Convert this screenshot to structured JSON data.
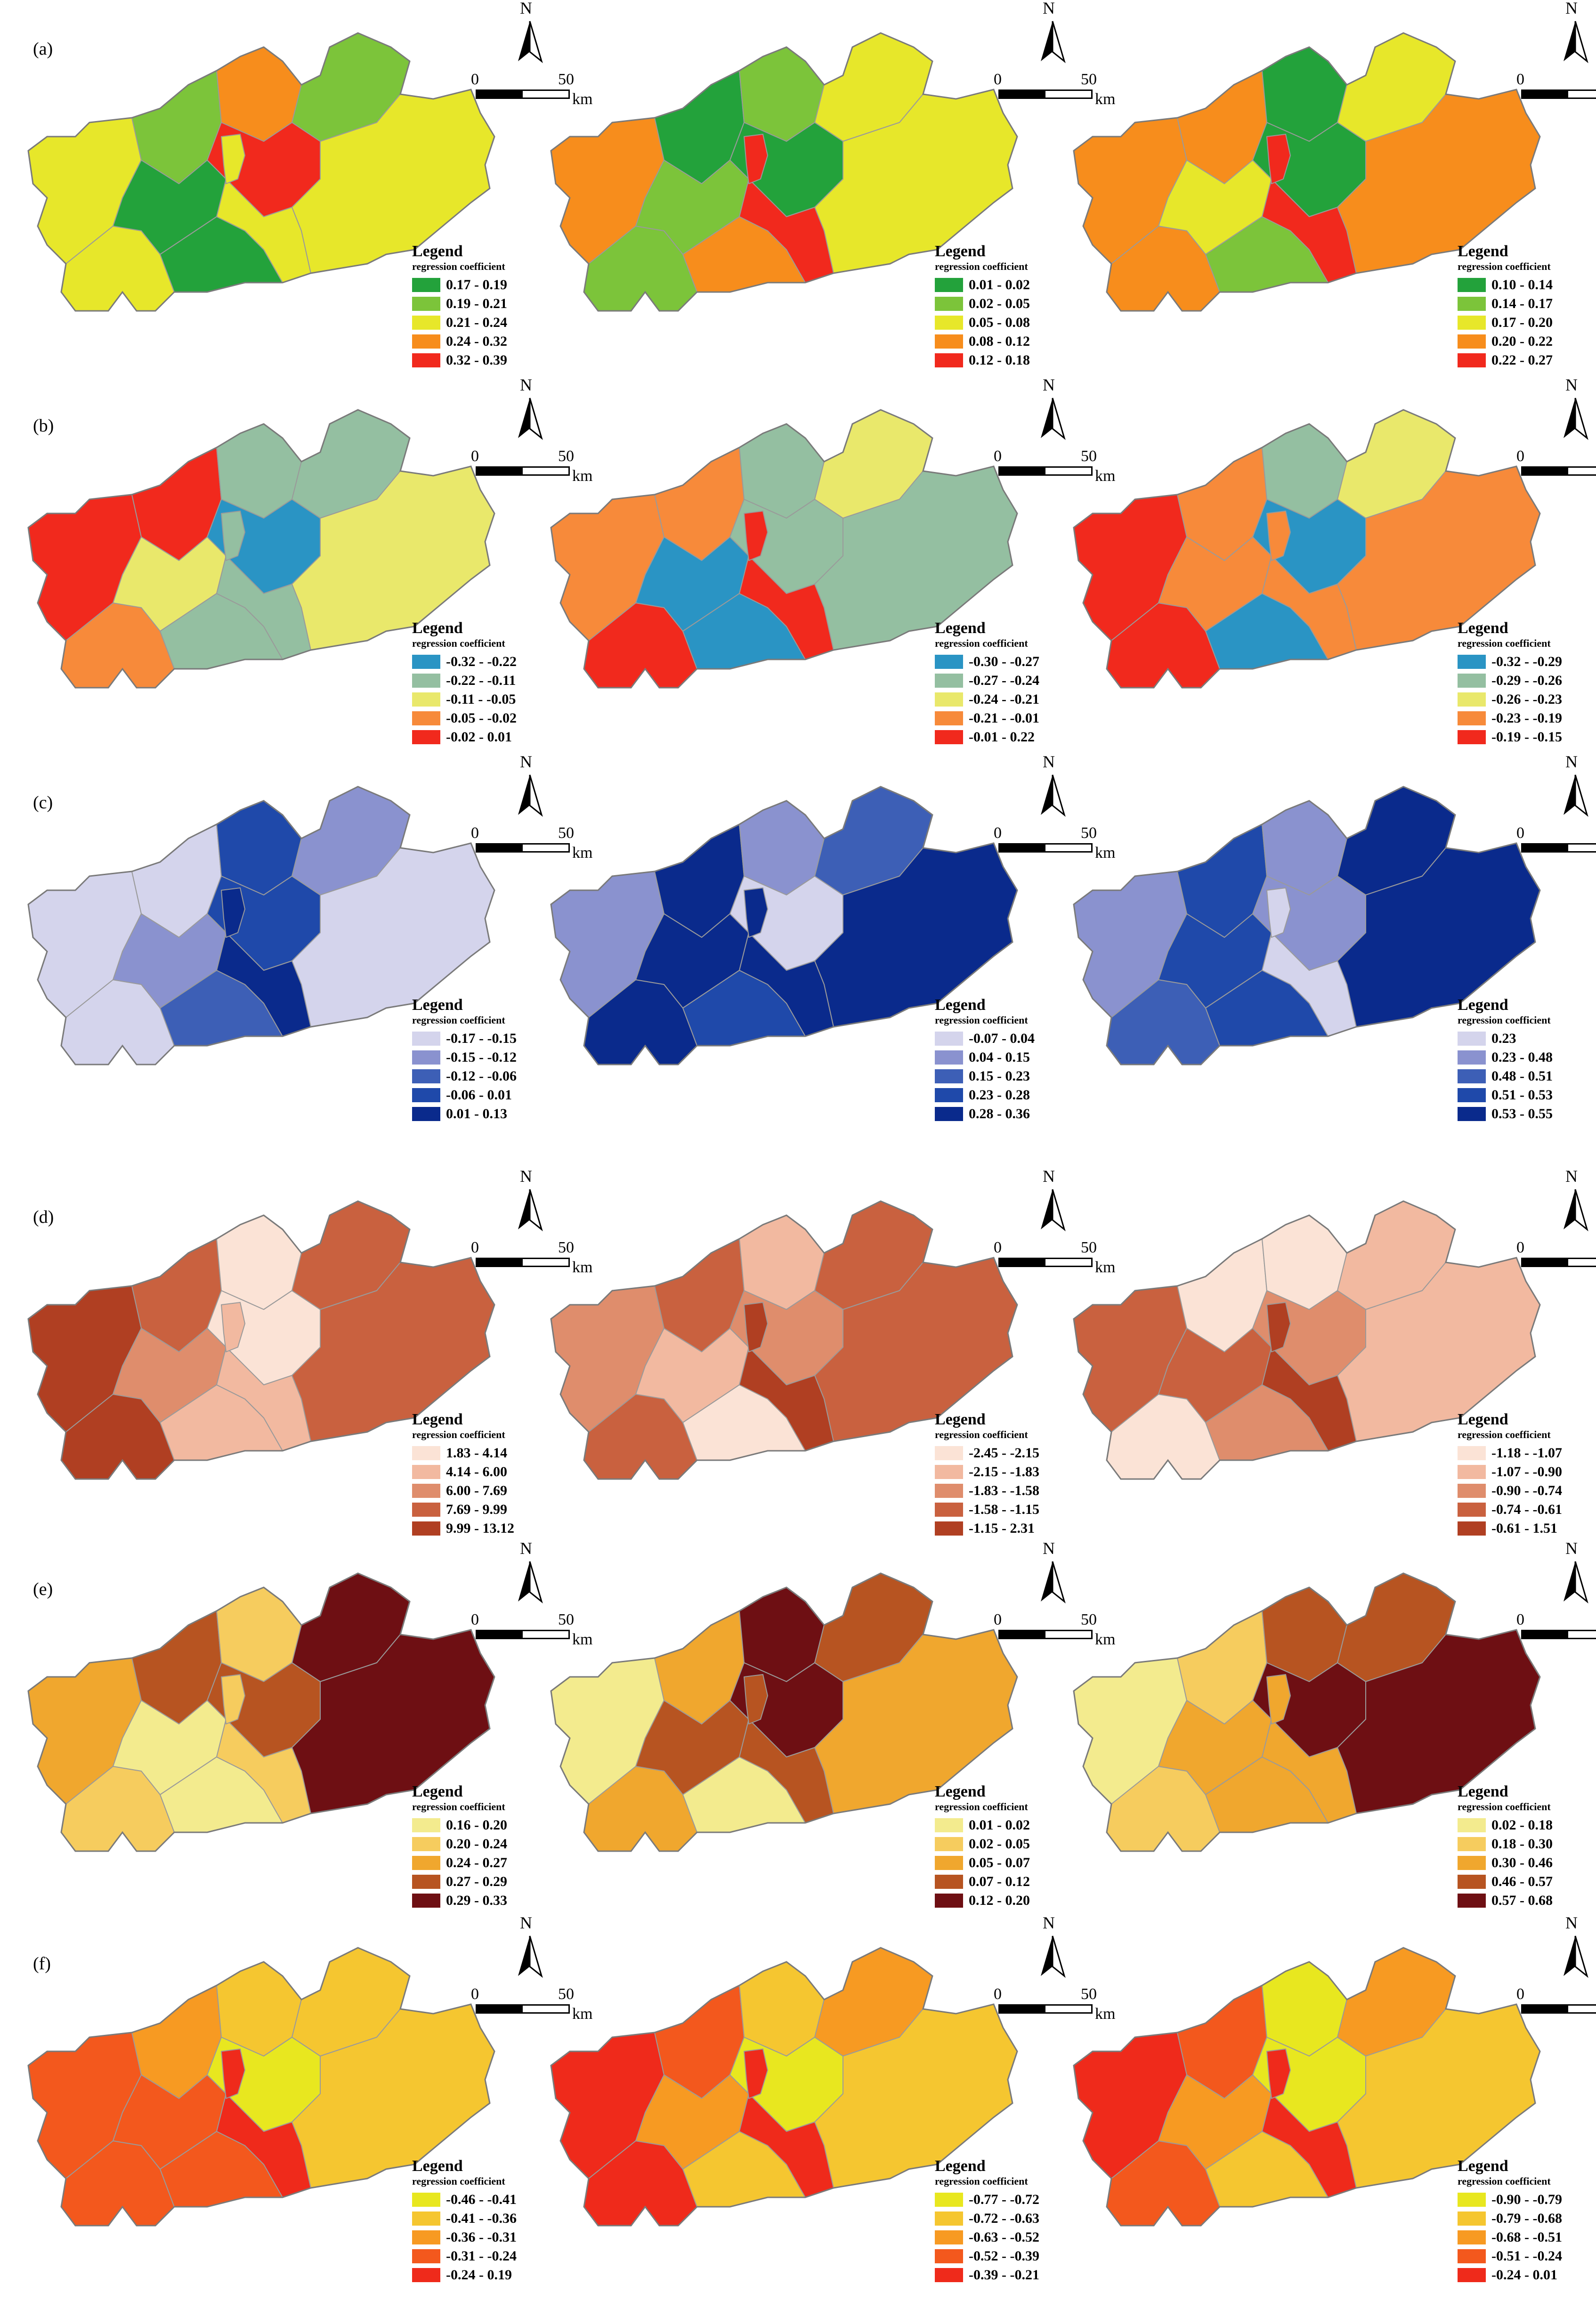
{
  "legend_title": "Legend",
  "legend_subtitle": "regression coefficient",
  "north_label": "N",
  "scale": {
    "zero": "0",
    "fifty": "50",
    "unit": "km"
  },
  "rows": [
    {
      "label": "(a)",
      "panels": [
        {
          "colors": [
            "#23a23b",
            "#7cc43a",
            "#e7e72a",
            "#f78d1c",
            "#f1291d"
          ],
          "labels": [
            "0.17 - 0.19",
            "0.19 - 0.21",
            "0.21 - 0.24",
            "0.24 - 0.32",
            "0.32 - 0.39"
          ],
          "zones": [
            2,
            2,
            1,
            0,
            0,
            3,
            4,
            1,
            2,
            2
          ]
        },
        {
          "colors": [
            "#23a23b",
            "#7cc43a",
            "#e7e72a",
            "#f78d1c",
            "#f1291d"
          ],
          "labels": [
            "0.01 - 0.02",
            "0.02 - 0.05",
            "0.05 - 0.08",
            "0.08 - 0.12",
            "0.12 - 0.18"
          ],
          "zones": [
            3,
            1,
            0,
            1,
            3,
            1,
            0,
            2,
            4,
            2
          ]
        },
        {
          "colors": [
            "#23a23b",
            "#7cc43a",
            "#e7e72a",
            "#f78d1c",
            "#f1291d"
          ],
          "labels": [
            "0.10 - 0.14",
            "0.14 - 0.17",
            "0.17 - 0.20",
            "0.20 - 0.22",
            "0.22 - 0.27"
          ],
          "zones": [
            3,
            3,
            3,
            2,
            1,
            0,
            0,
            2,
            4,
            3
          ]
        }
      ]
    },
    {
      "label": "(b)",
      "panels": [
        {
          "colors": [
            "#2a94c4",
            "#94bfa1",
            "#e9e86b",
            "#f78a3a",
            "#f1291d"
          ],
          "labels": [
            "-0.32 - -0.22",
            "-0.22 - -0.11",
            "-0.11 - -0.05",
            "-0.05 - -0.02",
            "-0.02 - 0.01"
          ],
          "zones": [
            4,
            3,
            4,
            2,
            1,
            1,
            0,
            1,
            1,
            2
          ]
        },
        {
          "colors": [
            "#2a94c4",
            "#94bfa1",
            "#e9e86b",
            "#f78a3a",
            "#f1291d"
          ],
          "labels": [
            "-0.30 - -0.27",
            "-0.27 - -0.24",
            "-0.24 - -0.21",
            "-0.21 - -0.01",
            "-0.01 - 0.22"
          ],
          "zones": [
            3,
            4,
            3,
            0,
            0,
            1,
            1,
            2,
            4,
            1
          ]
        },
        {
          "colors": [
            "#2a94c4",
            "#94bfa1",
            "#e9e86b",
            "#f78a3a",
            "#f1291d"
          ],
          "labels": [
            "-0.32 - -0.29",
            "-0.29 - -0.26",
            "-0.26 - -0.23",
            "-0.23 - -0.19",
            "-0.19 - -0.15"
          ],
          "zones": [
            4,
            4,
            3,
            3,
            0,
            1,
            0,
            2,
            3,
            3
          ]
        }
      ]
    },
    {
      "label": "(c)",
      "panels": [
        {
          "colors": [
            "#d4d4ec",
            "#8a92cf",
            "#3d5fb6",
            "#1f49aa",
            "#0a2a8c"
          ],
          "labels": [
            "-0.17 - -0.15",
            "-0.15 - -0.12",
            "-0.12 - -0.06",
            "-0.06 - 0.01",
            "0.01 - 0.13"
          ],
          "zones": [
            0,
            0,
            0,
            1,
            2,
            3,
            3,
            1,
            4,
            0
          ]
        },
        {
          "colors": [
            "#d4d4ec",
            "#8a92cf",
            "#3d5fb6",
            "#1f49aa",
            "#0a2a8c"
          ],
          "labels": [
            "-0.07 - 0.04",
            "0.04 - 0.15",
            "0.15 - 0.23",
            "0.23 - 0.28",
            "0.28 - 0.36"
          ],
          "zones": [
            1,
            4,
            4,
            4,
            3,
            1,
            0,
            2,
            4,
            4
          ]
        },
        {
          "colors": [
            "#d4d4ec",
            "#8a92cf",
            "#3d5fb6",
            "#1f49aa",
            "#0a2a8c"
          ],
          "labels": [
            "0.23",
            "0.23 - 0.48",
            "0.48 - 0.51",
            "0.51 - 0.53",
            "0.53 - 0.55"
          ],
          "zones": [
            1,
            2,
            3,
            3,
            3,
            1,
            1,
            4,
            0,
            4
          ]
        }
      ]
    },
    {
      "label": "(d)",
      "panels": [
        {
          "colors": [
            "#fbe3d6",
            "#f2b9a0",
            "#df8d6c",
            "#c9613f",
            "#b03f22"
          ],
          "labels": [
            "1.83 - 4.14",
            "4.14 - 6.00",
            "6.00 - 7.69",
            "7.69 - 9.99",
            "9.99 - 13.12"
          ],
          "zones": [
            4,
            4,
            3,
            2,
            1,
            0,
            0,
            3,
            1,
            3
          ]
        },
        {
          "colors": [
            "#fbe3d6",
            "#f2b9a0",
            "#df8d6c",
            "#c9613f",
            "#b03f22"
          ],
          "labels": [
            "-2.45 - -2.15",
            "-2.15 - -1.83",
            "-1.83 - -1.58",
            "-1.58 - -1.15",
            "-1.15 - 2.31"
          ],
          "zones": [
            2,
            3,
            3,
            1,
            0,
            1,
            2,
            3,
            4,
            3
          ]
        },
        {
          "colors": [
            "#fbe3d6",
            "#f2b9a0",
            "#df8d6c",
            "#c9613f",
            "#b03f22"
          ],
          "labels": [
            "-1.18 - -1.07",
            "-1.07 - -0.90",
            "-0.90 - -0.74",
            "-0.74 - -0.61",
            "-0.61 - 1.51"
          ],
          "zones": [
            3,
            0,
            0,
            3,
            2,
            0,
            2,
            1,
            4,
            1
          ]
        }
      ]
    },
    {
      "label": "(e)",
      "panels": [
        {
          "colors": [
            "#f3eb8e",
            "#f6cc5e",
            "#f0a72e",
            "#b75421",
            "#6e0f13"
          ],
          "labels": [
            "0.16 - 0.20",
            "0.20 - 0.24",
            "0.24 - 0.27",
            "0.27 - 0.29",
            "0.29 - 0.33"
          ],
          "zones": [
            2,
            1,
            3,
            0,
            0,
            1,
            3,
            4,
            1,
            4
          ]
        },
        {
          "colors": [
            "#f3eb8e",
            "#f6cc5e",
            "#f0a72e",
            "#b75421",
            "#6e0f13"
          ],
          "labels": [
            "0.01 - 0.02",
            "0.02 - 0.05",
            "0.05 - 0.07",
            "0.07 - 0.12",
            "0.12 - 0.20"
          ],
          "zones": [
            0,
            2,
            2,
            3,
            0,
            4,
            4,
            3,
            3,
            2
          ]
        },
        {
          "colors": [
            "#f3eb8e",
            "#f6cc5e",
            "#f0a72e",
            "#b75421",
            "#6e0f13"
          ],
          "labels": [
            "0.02 - 0.18",
            "0.18 - 0.30",
            "0.30 - 0.46",
            "0.46 - 0.57",
            "0.57 - 0.68"
          ],
          "zones": [
            0,
            1,
            1,
            2,
            2,
            3,
            4,
            3,
            2,
            4
          ]
        }
      ]
    },
    {
      "label": "(f)",
      "panels": [
        {
          "colors": [
            "#e8e71f",
            "#f5c630",
            "#f79a22",
            "#f3581d",
            "#ef2a1b"
          ],
          "labels": [
            "-0.46 - -0.41",
            "-0.41 - -0.36",
            "-0.36 - -0.31",
            "-0.31 - -0.24",
            "-0.24 - 0.19"
          ],
          "zones": [
            3,
            3,
            2,
            3,
            3,
            1,
            0,
            1,
            4,
            1
          ]
        },
        {
          "colors": [
            "#e8e71f",
            "#f5c630",
            "#f79a22",
            "#f3581d",
            "#ef2a1b"
          ],
          "labels": [
            "-0.77 - -0.72",
            "-0.72 - -0.63",
            "-0.63 - -0.52",
            "-0.52 - -0.39",
            "-0.39 - -0.21"
          ],
          "zones": [
            4,
            4,
            3,
            2,
            1,
            1,
            0,
            2,
            4,
            1
          ]
        },
        {
          "colors": [
            "#e8e71f",
            "#f5c630",
            "#f79a22",
            "#f3581d",
            "#ef2a1b"
          ],
          "labels": [
            "-0.90 - -0.79",
            "-0.79 - -0.68",
            "-0.68 - -0.51",
            "-0.51 - -0.24",
            "-0.24 - 0.01"
          ],
          "zones": [
            4,
            3,
            3,
            2,
            1,
            0,
            0,
            2,
            4,
            1
          ]
        }
      ]
    }
  ]
}
